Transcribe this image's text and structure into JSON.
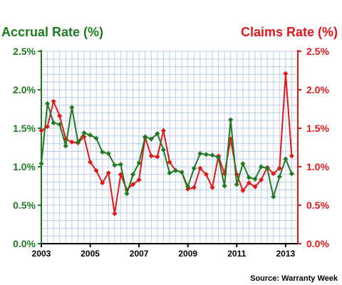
{
  "chart_data": {
    "type": "line",
    "title_left": "Accrual Rate (%)",
    "title_right": "Claims Rate (%)",
    "source": "Source: Warranty Week",
    "colors": {
      "accrual": "#1e7a1e",
      "claims": "#e01818",
      "grid": "#b8cde8",
      "axis_left": "#1e7a1e",
      "axis_right": "#e01818"
    },
    "grid": true,
    "ylim": [
      0,
      2.5
    ],
    "y_ticks": [
      0,
      0.5,
      1.0,
      1.5,
      2.0,
      2.5
    ],
    "y_tick_labels": [
      "0.0%",
      "0.5%",
      "1.0%",
      "1.5%",
      "2.0%",
      "2.5%"
    ],
    "xlim": [
      2003,
      2013.5
    ],
    "x_ticks": [
      2003,
      2005,
      2007,
      2009,
      2011,
      2013
    ],
    "x_tick_labels": [
      "2003",
      "2005",
      "2007",
      "2009",
      "2011",
      "2013"
    ],
    "series": [
      {
        "name": "Accrual Rate",
        "color": "#1e7a1e",
        "axis": "left",
        "x": [
          2003.0,
          2003.25,
          2003.5,
          2003.75,
          2004.0,
          2004.25,
          2004.5,
          2004.75,
          2005.0,
          2005.25,
          2005.5,
          2005.75,
          2006.0,
          2006.25,
          2006.5,
          2006.75,
          2007.0,
          2007.25,
          2007.5,
          2007.75,
          2008.0,
          2008.25,
          2008.5,
          2008.75,
          2009.0,
          2009.25,
          2009.5,
          2009.75,
          2010.0,
          2010.25,
          2010.5,
          2010.75,
          2011.0,
          2011.25,
          2011.5,
          2011.75,
          2012.0,
          2012.25,
          2012.5,
          2012.75,
          2013.0,
          2013.25
        ],
        "y": [
          1.04,
          1.82,
          1.57,
          1.55,
          1.27,
          1.77,
          1.32,
          1.44,
          1.41,
          1.37,
          1.19,
          1.17,
          1.02,
          1.03,
          0.65,
          0.9,
          1.05,
          1.39,
          1.36,
          1.43,
          1.22,
          0.92,
          0.95,
          0.93,
          0.74,
          0.98,
          1.17,
          1.16,
          1.15,
          1.12,
          0.75,
          1.61,
          0.77,
          1.04,
          0.86,
          0.84,
          1.0,
          0.98,
          0.61,
          0.87,
          1.1,
          0.91
        ]
      },
      {
        "name": "Claims Rate",
        "color": "#e01818",
        "axis": "right",
        "x": [
          2003.0,
          2003.25,
          2003.5,
          2003.75,
          2004.0,
          2004.25,
          2004.5,
          2004.75,
          2005.0,
          2005.25,
          2005.5,
          2005.75,
          2006.0,
          2006.25,
          2006.5,
          2006.75,
          2007.0,
          2007.25,
          2007.5,
          2007.75,
          2008.0,
          2008.25,
          2008.5,
          2008.75,
          2009.0,
          2009.25,
          2009.5,
          2009.75,
          2010.0,
          2010.25,
          2010.5,
          2010.75,
          2011.0,
          2011.25,
          2011.5,
          2011.75,
          2012.0,
          2012.25,
          2012.5,
          2012.75,
          2013.0,
          2013.25
        ],
        "y": [
          1.47,
          1.52,
          1.85,
          1.66,
          1.36,
          1.32,
          1.31,
          1.39,
          1.06,
          0.95,
          0.79,
          0.92,
          0.39,
          0.9,
          0.7,
          0.77,
          0.83,
          1.38,
          1.14,
          1.13,
          1.47,
          1.06,
          0.95,
          0.93,
          0.71,
          0.73,
          0.98,
          0.9,
          0.73,
          1.14,
          0.91,
          1.36,
          0.9,
          0.69,
          0.79,
          0.74,
          0.83,
          0.99,
          0.91,
          0.98,
          2.21,
          1.14
        ]
      }
    ]
  }
}
